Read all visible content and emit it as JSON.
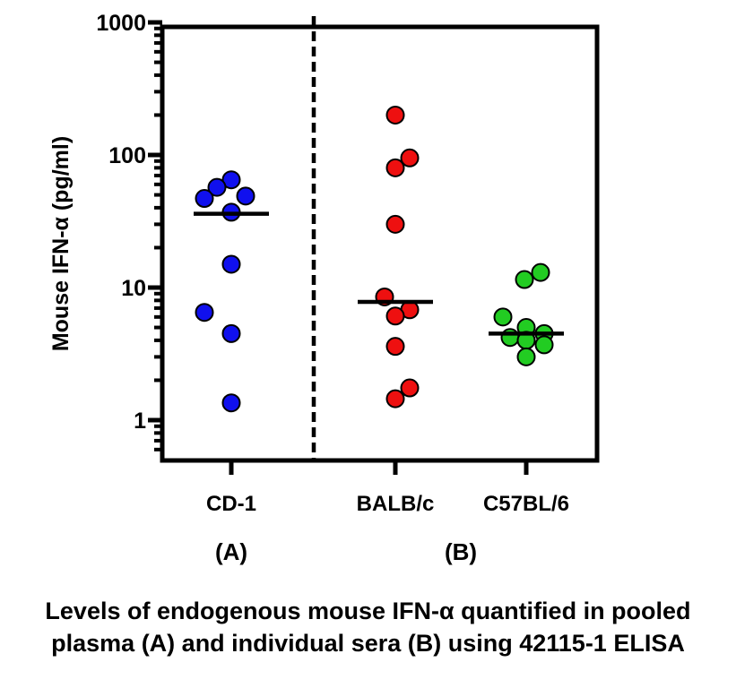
{
  "caption": {
    "line1": "Levels of endogenous mouse IFN-α quantified in pooled",
    "line2": "plasma (A) and individual sera (B) using 42115-1 ELISA"
  },
  "chart_data": {
    "type": "scatter",
    "ylabel": "Mouse IFN-α (pg/ml)",
    "yscale": "log",
    "ylim": [
      0.5,
      1000
    ],
    "yticks": [
      {
        "value": 1,
        "label": "1"
      },
      {
        "value": 10,
        "label": "10"
      },
      {
        "value": 100,
        "label": "100"
      },
      {
        "value": 1000,
        "label": "1000"
      }
    ],
    "categories": [
      "CD-1",
      "BALB/c",
      "C57BL/6"
    ],
    "groups": [
      {
        "label": "(A)",
        "categories": [
          "CD-1"
        ]
      },
      {
        "label": "(B)",
        "categories": [
          "BALB/c",
          "C57BL/6"
        ]
      }
    ],
    "divider": "dashed line between (A) and (B)",
    "series": [
      {
        "category": "CD-1",
        "color": "#1010ee",
        "median": 36,
        "values": [
          65,
          57,
          49,
          47,
          37,
          15,
          6.5,
          4.5,
          1.35
        ]
      },
      {
        "category": "BALB/c",
        "color": "#ee1010",
        "median": 7.8,
        "values": [
          200,
          95,
          80,
          30,
          8.5,
          6.8,
          6.1,
          3.6,
          1.75,
          1.45
        ]
      },
      {
        "category": "C57BL/6",
        "color": "#22cc22",
        "median": 4.5,
        "values": [
          13,
          11.5,
          6,
          5,
          4.5,
          4.2,
          4.0,
          3.7,
          3.0
        ]
      }
    ]
  }
}
